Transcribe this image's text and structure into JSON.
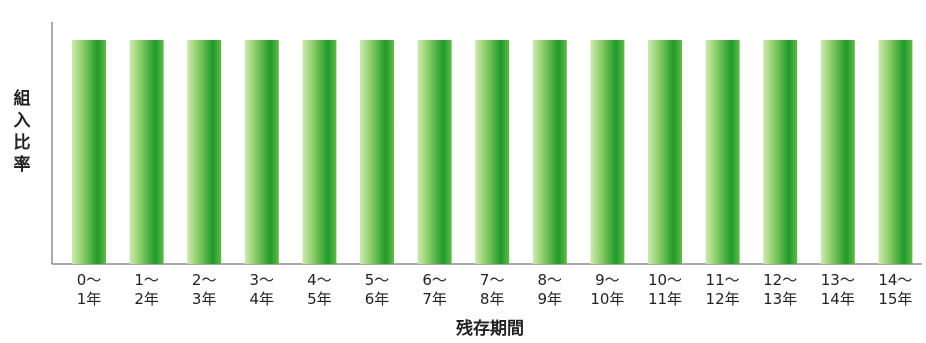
{
  "chart_data": {
    "type": "bar",
    "ylabel": "組入比率",
    "xlabel": "残存期間",
    "categories": [
      [
        "0〜",
        "1年"
      ],
      [
        "1〜",
        "2年"
      ],
      [
        "2〜",
        "3年"
      ],
      [
        "3〜",
        "4年"
      ],
      [
        "4〜",
        "5年"
      ],
      [
        "5〜",
        "6年"
      ],
      [
        "6〜",
        "7年"
      ],
      [
        "7〜",
        "8年"
      ],
      [
        "8〜",
        "9年"
      ],
      [
        "9〜",
        "10年"
      ],
      [
        "10〜",
        "11年"
      ],
      [
        "11〜",
        "12年"
      ],
      [
        "12〜",
        "13年"
      ],
      [
        "13〜",
        "14年"
      ],
      [
        "14〜",
        "15年"
      ]
    ],
    "values": [
      1,
      1,
      1,
      1,
      1,
      1,
      1,
      1,
      1,
      1,
      1,
      1,
      1,
      1,
      1
    ],
    "ylim": [
      0,
      1
    ],
    "grid": false,
    "legend": "none",
    "colors": {
      "bar_dark": "#1f9a2a",
      "bar_light": "#cfeab0",
      "axis": "#555555"
    }
  }
}
